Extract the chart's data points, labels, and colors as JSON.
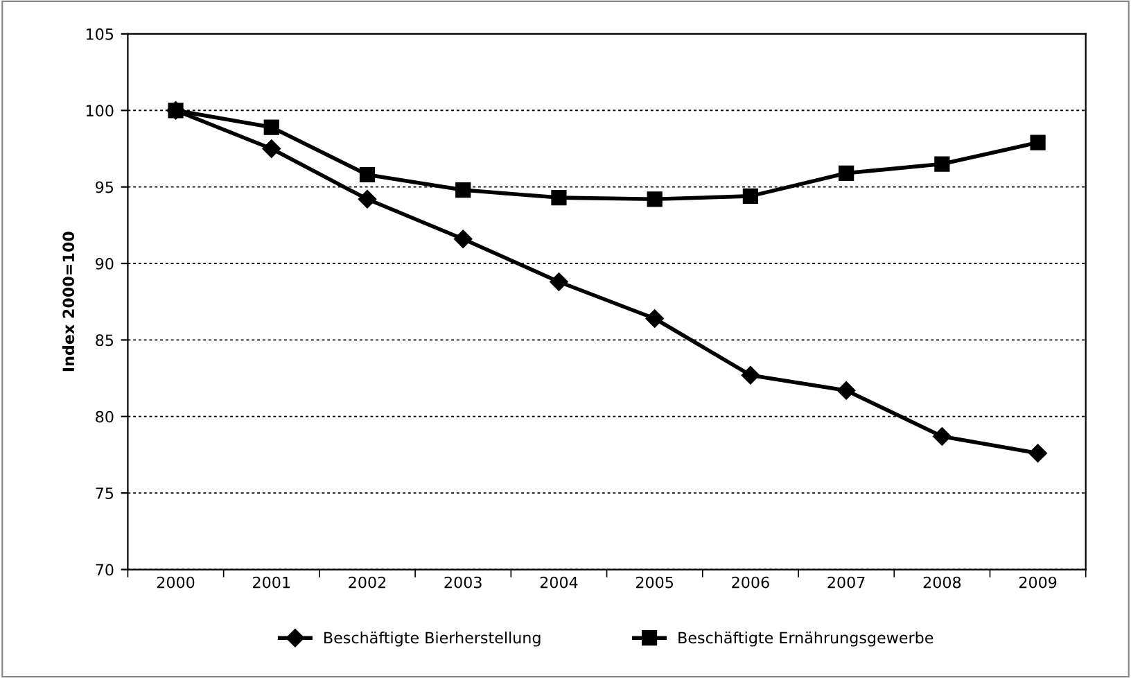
{
  "chart_data": {
    "type": "line",
    "ylabel": "Index 2000=100",
    "categories": [
      "2000",
      "2001",
      "2002",
      "2003",
      "2004",
      "2005",
      "2006",
      "2007",
      "2008",
      "2009"
    ],
    "series": [
      {
        "name": "Beschäftigte Bierherstellung",
        "color": "#000000",
        "marker": "diamond",
        "values": [
          100,
          97.5,
          94.2,
          91.6,
          88.8,
          86.4,
          82.7,
          81.7,
          78.7,
          77.6
        ]
      },
      {
        "name": "Beschäftigte Ernährungsgewerbe",
        "color": "#000000",
        "marker": "square",
        "values": [
          100,
          98.9,
          95.8,
          94.8,
          94.3,
          94.2,
          94.4,
          95.9,
          96.5,
          97.9
        ]
      }
    ],
    "ylim": [
      70,
      105
    ],
    "yticks": [
      70,
      75,
      80,
      85,
      90,
      95,
      100,
      105
    ],
    "grid": "y",
    "legend": "bottom",
    "line_style": "solid"
  }
}
